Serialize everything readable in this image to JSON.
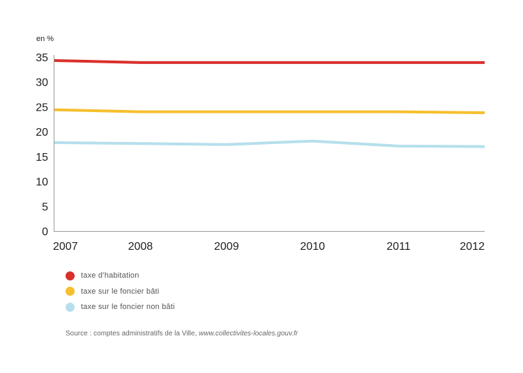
{
  "chart_data": {
    "type": "line",
    "ylabel": "en %",
    "x": [
      "2007",
      "2008",
      "2009",
      "2010",
      "2011",
      "2012"
    ],
    "ylim": [
      0,
      35
    ],
    "yticks": [
      0,
      5,
      10,
      15,
      20,
      25,
      30,
      35
    ],
    "grid": false,
    "legend_position": "bottom-left",
    "series": [
      {
        "name": "taxe d’habitation",
        "color": "#d9302c",
        "values": [
          34.3,
          33.9,
          33.9,
          33.9,
          33.9,
          33.9
        ]
      },
      {
        "name": "taxe sur le foncier bâti",
        "color": "#f5bf2e",
        "values": [
          24.4,
          24.0,
          24.0,
          24.0,
          24.0,
          23.8
        ]
      },
      {
        "name": "taxe sur le foncier non bâti",
        "color": "#b6dfec",
        "values": [
          17.8,
          17.6,
          17.4,
          18.1,
          17.1,
          17.0
        ]
      }
    ]
  },
  "source": {
    "prefix": "Source : comptes administratifs de la Ville, ",
    "url": "www.collectivites-locales.gouv.fr"
  }
}
